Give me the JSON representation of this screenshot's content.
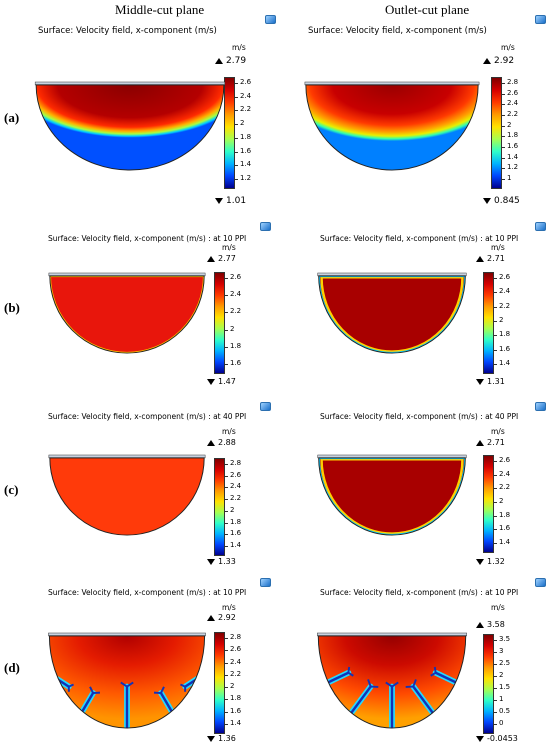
{
  "headers": {
    "left": "Middle-cut plane",
    "right": "Outlet-cut plane"
  },
  "rows": [
    {
      "label": "(a)",
      "panels": [
        {
          "title": "Surface: Velocity field, x-component (m/s)",
          "unit": "m/s",
          "max": "2.79",
          "min": "1.01",
          "ticks": [
            "2.6",
            "2.4",
            "2.2",
            "2",
            "1.8",
            "1.6",
            "1.4",
            "1.2"
          ]
        },
        {
          "title": "Surface: Velocity field, x-component (m/s)",
          "unit": "m/s",
          "max": "2.92",
          "min": "0.845",
          "ticks": [
            "2.8",
            "2.6",
            "2.4",
            "2.2",
            "2",
            "1.8",
            "1.6",
            "1.4",
            "1.2",
            "1"
          ]
        }
      ]
    },
    {
      "label": "(b)",
      "panels": [
        {
          "title": "Surface: Velocity field, x-component (m/s) : at 10 PPI",
          "unit": "m/s",
          "max": "2.77",
          "min": "1.47",
          "ticks": [
            "2.6",
            "2.4",
            "2.2",
            "2",
            "1.8",
            "1.6"
          ]
        },
        {
          "title": "Surface: Velocity field, x-component (m/s) : at 10 PPI",
          "unit": "m/s",
          "max": "2.71",
          "min": "1.31",
          "ticks": [
            "2.6",
            "2.4",
            "2.2",
            "2",
            "1.8",
            "1.6",
            "1.4"
          ]
        }
      ]
    },
    {
      "label": "(c)",
      "panels": [
        {
          "title": "Surface: Velocity field, x-component (m/s) : at 40 PPI",
          "unit": "m/s",
          "max": "2.88",
          "min": "1.33",
          "ticks": [
            "2.8",
            "2.6",
            "2.4",
            "2.2",
            "2",
            "1.8",
            "1.6",
            "1.4"
          ]
        },
        {
          "title": "Surface: Velocity field, x-component (m/s) : at 40 PPI",
          "unit": "m/s",
          "max": "2.71",
          "min": "1.32",
          "ticks": [
            "2.6",
            "2.4",
            "2.2",
            "2",
            "1.8",
            "1.6",
            "1.4"
          ]
        }
      ]
    },
    {
      "label": "(d)",
      "panels": [
        {
          "title": "Surface: Velocity field, x-component (m/s) : at 10 PPI",
          "unit": "m/s",
          "max": "2.92",
          "min": "1.36",
          "ticks": [
            "2.8",
            "2.6",
            "2.4",
            "2.2",
            "2",
            "1.8",
            "1.6",
            "1.4"
          ]
        },
        {
          "title": "Surface: Velocity field, x-component (m/s) : at 10 PPI",
          "unit": "m/s",
          "max": "3.58",
          "min": "-0.0453",
          "ticks": [
            "3.5",
            "3",
            "2.5",
            "2",
            "1.5",
            "1",
            "0.5",
            "0"
          ]
        }
      ]
    }
  ],
  "colors": {
    "dark_red": "#8c0000",
    "red": "#e8160c",
    "orange_red": "#ff3a0a",
    "fin_cyan": "#25d9ff",
    "fin_blue": "#1232b8"
  }
}
